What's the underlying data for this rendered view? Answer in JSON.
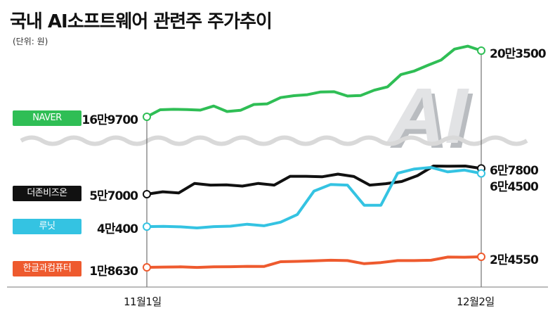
{
  "title": "국내 AI소프트웨어 관련주 주가추이",
  "unit": "(단위: 원)",
  "watermark": "AI",
  "chart_data": {
    "type": "line",
    "title": "국내 AI소프트웨어 관련주 주가추이",
    "unit": "(단위: 원)",
    "x_tick_labels": [
      "11월1일",
      "12월2일"
    ],
    "axis_break": true,
    "series": [
      {
        "name": "NAVER",
        "color": "#2fbe55",
        "start_label": "16만9700",
        "end_label": "20만3500",
        "values": [
          169700,
          173300,
          173500,
          173400,
          173100,
          175200,
          172400,
          173000,
          176000,
          176300,
          179500,
          180500,
          181000,
          182400,
          182500,
          180300,
          180600,
          183300,
          185000,
          191300,
          193100,
          196000,
          198700,
          204300,
          205800,
          203500
        ]
      },
      {
        "name": "더존비즈온",
        "color": "#111111",
        "start_label": "5만7000",
        "end_label": "6만7800",
        "values": [
          57000,
          58000,
          57500,
          61500,
          60800,
          60900,
          60400,
          61500,
          60800,
          64500,
          64500,
          64300,
          65400,
          64400,
          60800,
          61400,
          62300,
          64800,
          68800,
          68700,
          68800,
          67800
        ]
      },
      {
        "name": "루닛",
        "color": "#34c3e2",
        "start_label": "4만400",
        "end_label": "6만4500",
        "values": [
          40400,
          40500,
          40300,
          39800,
          40400,
          40600,
          41500,
          40800,
          42400,
          45900,
          56500,
          59500,
          59200,
          50100,
          50100,
          64600,
          66500,
          67200,
          65200,
          66000,
          64500
        ]
      },
      {
        "name": "한글과컴퓨터",
        "color": "#ee5a2e",
        "start_label": "1만8630",
        "end_label": "2만4550",
        "values": [
          18630,
          18800,
          18900,
          18600,
          18900,
          19000,
          19200,
          19100,
          21800,
          22000,
          22300,
          22600,
          22400,
          20700,
          21300,
          22400,
          22400,
          22600,
          24400,
          24300,
          24550
        ]
      }
    ]
  }
}
